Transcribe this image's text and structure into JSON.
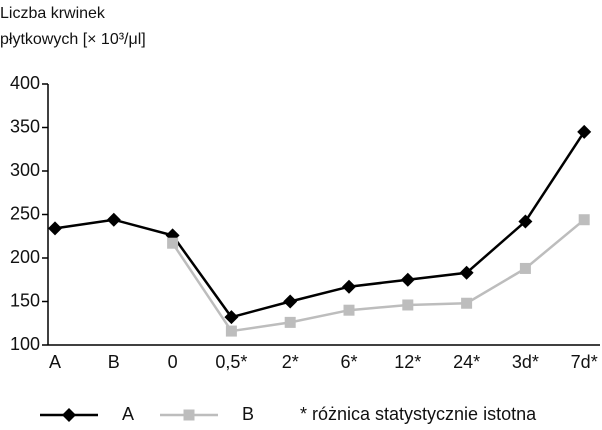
{
  "chart_data": {
    "type": "line",
    "y_label": [
      "Liczba krwinek",
      "płytkowych [× 10³/μl]"
    ],
    "categories": [
      "A",
      "B",
      "0",
      "0,5*",
      "2*",
      "6*",
      "12*",
      "24*",
      "3d*",
      "7d*"
    ],
    "series": [
      {
        "name": "A",
        "color": "#000000",
        "marker": "diamond",
        "values": [
          234,
          244,
          226,
          132,
          150,
          167,
          175,
          183,
          242,
          345
        ]
      },
      {
        "name": "B",
        "color": "#bdbdbd",
        "marker": "square",
        "values": [
          null,
          null,
          217,
          116,
          126,
          140,
          146,
          148,
          188,
          244
        ]
      }
    ],
    "note": "* różnica statystycznie istotna",
    "ylim": [
      100,
      400
    ],
    "yticks": [
      100,
      150,
      200,
      250,
      300,
      350,
      400
    ]
  }
}
